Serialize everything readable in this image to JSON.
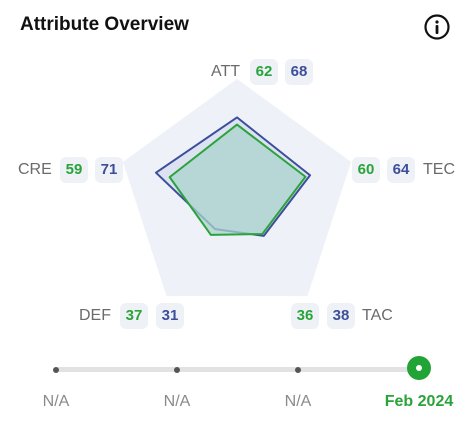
{
  "header": {
    "title": "Attribute Overview",
    "info_icon": "info-icon"
  },
  "colors": {
    "green": "#2aa33a",
    "blue": "#3d4f9b",
    "badge_bg": "#eef1f6",
    "pentagon_bg": "#eef2f8"
  },
  "chart_data": {
    "type": "radar",
    "axes": [
      "ATT",
      "TEC",
      "TAC",
      "DEF",
      "CRE"
    ],
    "series": [
      {
        "values": [
          62,
          60,
          36,
          37,
          59
        ],
        "color": "#2aa33a"
      },
      {
        "values": [
          68,
          64,
          38,
          31,
          71
        ],
        "color": "#3d4f9b"
      }
    ],
    "range": [
      0,
      100
    ]
  },
  "attributes": {
    "att": {
      "label": "ATT",
      "green": "62",
      "blue": "68"
    },
    "tec": {
      "label": "TEC",
      "green": "60",
      "blue": "64"
    },
    "tac": {
      "label": "TAC",
      "green": "36",
      "blue": "38"
    },
    "def": {
      "label": "DEF",
      "green": "37",
      "blue": "31"
    },
    "cre": {
      "label": "CRE",
      "green": "59",
      "blue": "71"
    }
  },
  "timeline": {
    "labels": [
      "N/A",
      "N/A",
      "N/A",
      "Feb 2024"
    ],
    "active_index": 3
  }
}
